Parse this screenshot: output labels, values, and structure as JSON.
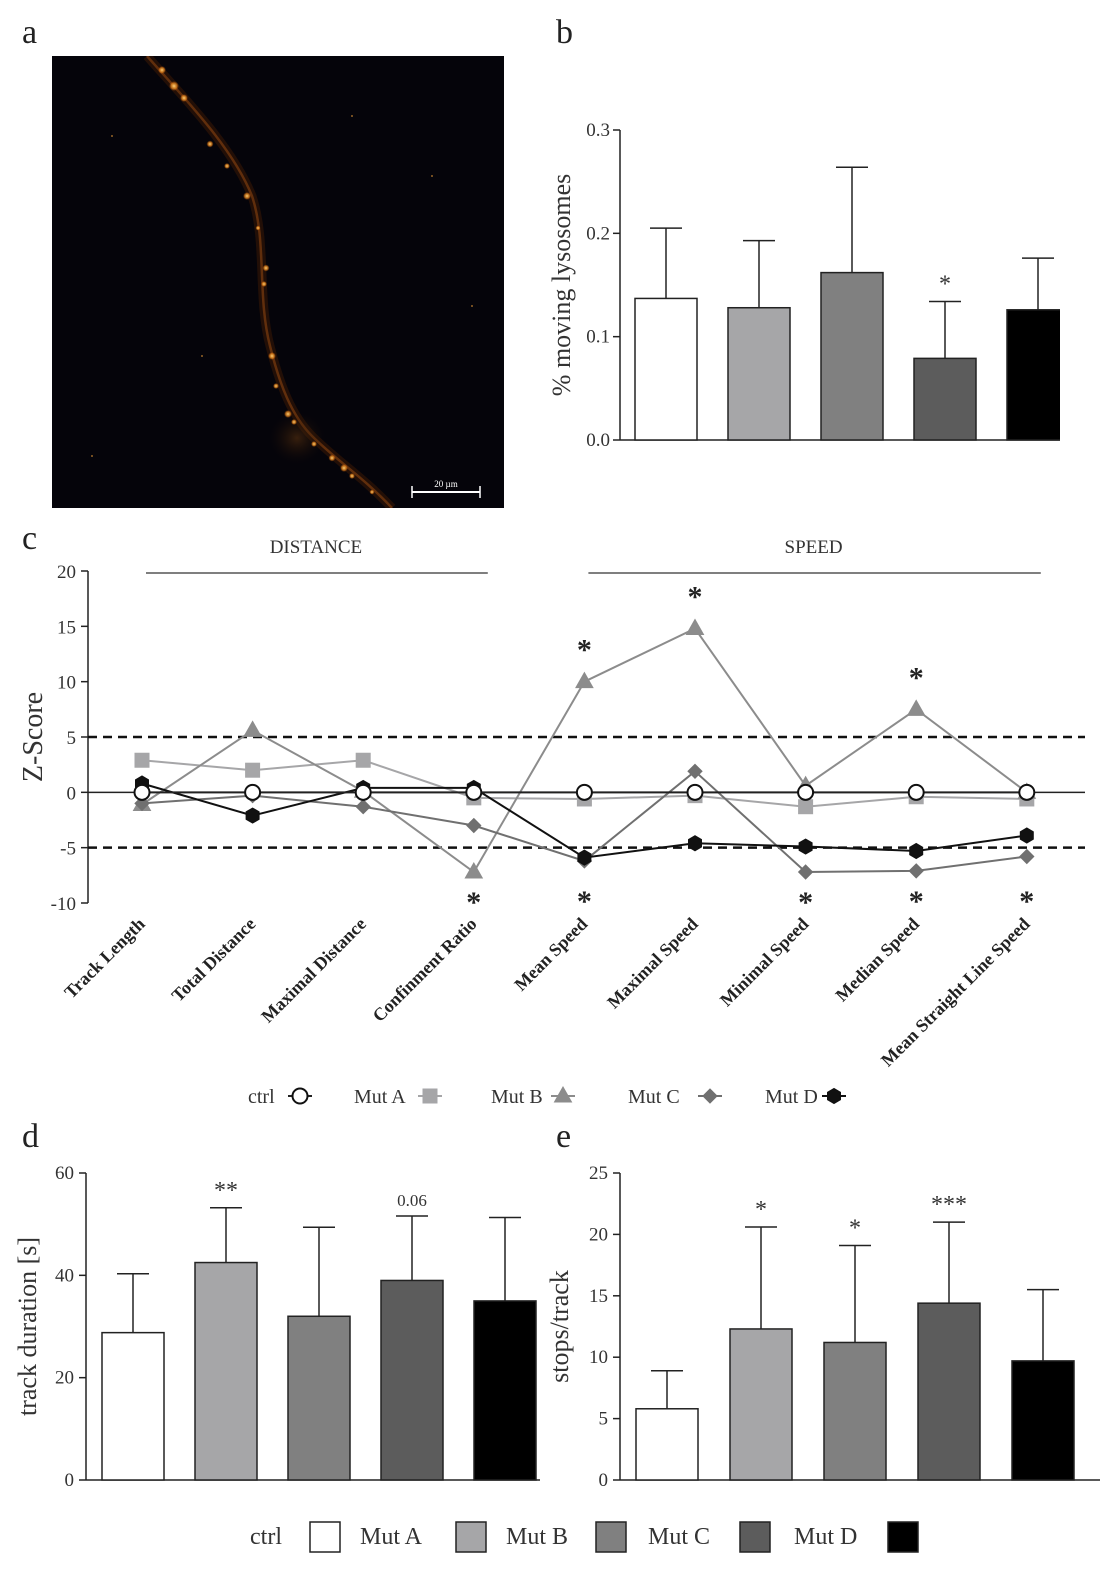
{
  "panels": {
    "a": "a",
    "b": "b",
    "c": "c",
    "d": "d",
    "e": "e"
  },
  "colors": {
    "ctrl": "#ffffff",
    "mutA": "#a6a6a8",
    "mutB": "#808080",
    "mutC": "#5c5c5c",
    "mutD": "#000000"
  },
  "micrograph": {
    "scale_label": "20 µm"
  },
  "chart_data": [
    {
      "id": "b",
      "type": "bar",
      "categories": [
        "ctrl",
        "Mut A",
        "Mut B",
        "Mut C",
        "Mut D"
      ],
      "values": [
        0.137,
        0.128,
        0.162,
        0.079,
        0.126
      ],
      "errors": [
        0.068,
        0.065,
        0.102,
        0.055,
        0.05
      ],
      "annotations": [
        "",
        "",
        "",
        "*",
        ""
      ],
      "ylabel": "% moving lysosomes",
      "ylim": [
        0,
        0.3
      ],
      "yticks": [
        0.0,
        0.1,
        0.2,
        0.3
      ],
      "ytick_labels": [
        "0.0",
        "0.1",
        "0.2",
        "0.3"
      ]
    },
    {
      "id": "c",
      "type": "line",
      "ylabel": "Z-Score",
      "ylim": [
        -10,
        20
      ],
      "yticks": [
        -10,
        -5,
        0,
        5,
        10,
        15,
        20
      ],
      "ytick_labels": [
        "-10",
        "-5",
        "0",
        "5",
        "10",
        "15",
        "20"
      ],
      "reference_lines": [
        5,
        -5
      ],
      "groups": [
        {
          "label": "DISTANCE",
          "from": 0,
          "to": 3
        },
        {
          "label": "SPEED",
          "from": 4,
          "to": 8
        }
      ],
      "categories": [
        "Track Length",
        "Total Distance",
        "Maximal Distance",
        "Confinment Ratio",
        "Mean Speed",
        "Maximal Speed",
        "Minimal Speed",
        "Median Speed",
        "Mean Straight Line Speed"
      ],
      "series": [
        {
          "name": "ctrl",
          "marker": "circle",
          "values": [
            0,
            0,
            0,
            0,
            0,
            0,
            0,
            0,
            0
          ]
        },
        {
          "name": "Mut A",
          "marker": "square",
          "values": [
            2.9,
            2.0,
            2.9,
            -0.5,
            -0.6,
            -0.3,
            -1.3,
            -0.4,
            -0.6
          ]
        },
        {
          "name": "Mut B",
          "marker": "triangle",
          "values": [
            -1.1,
            5.6,
            0.1,
            -7.2,
            10.0,
            14.8,
            0.6,
            7.5,
            0.0
          ]
        },
        {
          "name": "Mut C",
          "marker": "diamond",
          "values": [
            -1.0,
            -0.3,
            -1.3,
            -3.0,
            -6.2,
            1.9,
            -7.2,
            -7.1,
            -5.8
          ]
        },
        {
          "name": "Mut D",
          "marker": "hexagon",
          "values": [
            0.8,
            -2.1,
            0.4,
            0.4,
            -5.9,
            -4.6,
            -4.9,
            -5.3,
            -3.9
          ]
        }
      ],
      "annotations": [
        {
          "category": 3,
          "position": "below",
          "text": "*"
        },
        {
          "category": 4,
          "position": "above",
          "text": "*"
        },
        {
          "category": 4,
          "position": "below",
          "text": "*"
        },
        {
          "category": 5,
          "position": "above",
          "text": "*"
        },
        {
          "category": 6,
          "position": "below",
          "text": "*"
        },
        {
          "category": 7,
          "position": "above",
          "text": "*"
        },
        {
          "category": 7,
          "position": "below",
          "text": "*"
        },
        {
          "category": 8,
          "position": "below",
          "text": "*"
        }
      ]
    },
    {
      "id": "d",
      "type": "bar",
      "categories": [
        "ctrl",
        "Mut A",
        "Mut B",
        "Mut C",
        "Mut D"
      ],
      "values": [
        28.8,
        42.5,
        32.0,
        39.0,
        35.0
      ],
      "errors": [
        11.5,
        10.7,
        17.4,
        12.6,
        16.3
      ],
      "annotations": [
        "",
        "**",
        "",
        "0.06",
        ""
      ],
      "ylabel": "track duration [s]",
      "ylim": [
        0,
        60
      ],
      "yticks": [
        0,
        20,
        40,
        60
      ],
      "ytick_labels": [
        "0",
        "20",
        "40",
        "60"
      ]
    },
    {
      "id": "e",
      "type": "bar",
      "categories": [
        "ctrl",
        "Mut A",
        "Mut B",
        "Mut C",
        "Mut D"
      ],
      "values": [
        5.8,
        12.3,
        11.2,
        14.4,
        9.7
      ],
      "errors": [
        3.1,
        8.3,
        7.9,
        6.6,
        5.8
      ],
      "annotations": [
        "",
        "*",
        "*",
        "***",
        ""
      ],
      "ylabel": "stops/track",
      "ylim": [
        0,
        25
      ],
      "yticks": [
        0,
        5,
        10,
        15,
        20,
        25
      ],
      "ytick_labels": [
        "0",
        "5",
        "10",
        "15",
        "20",
        "25"
      ]
    }
  ],
  "legend_line": [
    {
      "label": "ctrl",
      "marker": "circle"
    },
    {
      "label": "Mut A",
      "marker": "square"
    },
    {
      "label": "Mut B",
      "marker": "triangle"
    },
    {
      "label": "Mut C",
      "marker": "diamond"
    },
    {
      "label": "Mut D",
      "marker": "hexagon"
    }
  ],
  "legend_bar": [
    {
      "label": "ctrl"
    },
    {
      "label": "Mut A"
    },
    {
      "label": "Mut B"
    },
    {
      "label": "Mut C"
    },
    {
      "label": "Mut D"
    }
  ]
}
